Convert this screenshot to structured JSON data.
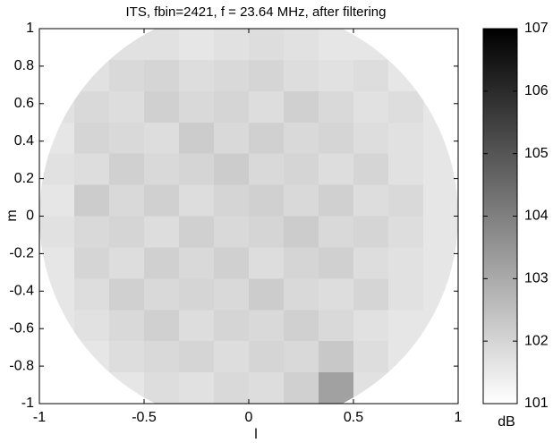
{
  "chart_data": {
    "type": "heatmap",
    "title": "ITS, fbin=2421, f = 23.64 MHz, after filtering",
    "xlabel": "l",
    "ylabel": "m",
    "xlim": [
      -1,
      1
    ],
    "ylim": [
      -1,
      1
    ],
    "xticks": [
      -1,
      -0.5,
      0,
      0.5,
      1
    ],
    "yticks": [
      -1,
      -0.8,
      -0.6,
      -0.4,
      -0.2,
      0,
      0.2,
      0.4,
      0.6,
      0.8,
      1
    ],
    "shape": "circle",
    "colormap": "gray-reversed",
    "colorbar": {
      "label": "dB",
      "lim": [
        101,
        107
      ],
      "ticks": [
        101,
        102,
        103,
        104,
        105,
        106,
        107
      ]
    },
    "z": [
      [
        101.6,
        101.6,
        101.7,
        101.7,
        101.6,
        101.7,
        101.8,
        101.7,
        101.6,
        101.6,
        101.6,
        101.6
      ],
      [
        101.6,
        101.7,
        101.9,
        102.0,
        101.8,
        101.9,
        102.0,
        101.8,
        101.7,
        101.8,
        101.6,
        101.6
      ],
      [
        101.7,
        101.9,
        101.8,
        102.1,
        101.9,
        102.0,
        101.8,
        102.1,
        101.9,
        101.7,
        101.8,
        101.6
      ],
      [
        101.6,
        102.0,
        101.9,
        101.8,
        102.2,
        101.9,
        102.1,
        101.9,
        102.0,
        101.8,
        101.7,
        101.6
      ],
      [
        101.7,
        101.8,
        102.1,
        101.9,
        102.0,
        102.2,
        101.9,
        102.0,
        101.8,
        102.0,
        101.7,
        101.6
      ],
      [
        101.6,
        102.2,
        101.9,
        102.1,
        101.8,
        102.0,
        102.1,
        101.9,
        102.1,
        101.8,
        101.9,
        101.6
      ],
      [
        101.7,
        101.9,
        102.0,
        101.8,
        102.1,
        101.9,
        102.0,
        102.2,
        101.9,
        102.0,
        101.8,
        101.6
      ],
      [
        101.6,
        102.0,
        101.8,
        102.1,
        101.9,
        102.1,
        101.8,
        102.0,
        102.1,
        101.8,
        101.7,
        101.6
      ],
      [
        101.6,
        101.8,
        102.1,
        101.9,
        102.0,
        101.9,
        102.2,
        101.9,
        101.8,
        102.0,
        101.7,
        101.6
      ],
      [
        101.6,
        101.7,
        101.9,
        102.1,
        101.8,
        102.0,
        101.9,
        102.1,
        101.9,
        101.7,
        101.6,
        101.6
      ],
      [
        101.6,
        101.6,
        101.8,
        101.9,
        102.0,
        101.8,
        102.0,
        101.9,
        102.3,
        101.8,
        101.6,
        101.6
      ],
      [
        101.6,
        101.6,
        101.6,
        101.8,
        101.7,
        101.9,
        101.8,
        102.1,
        103.2,
        101.7,
        101.6,
        101.6
      ]
    ]
  }
}
